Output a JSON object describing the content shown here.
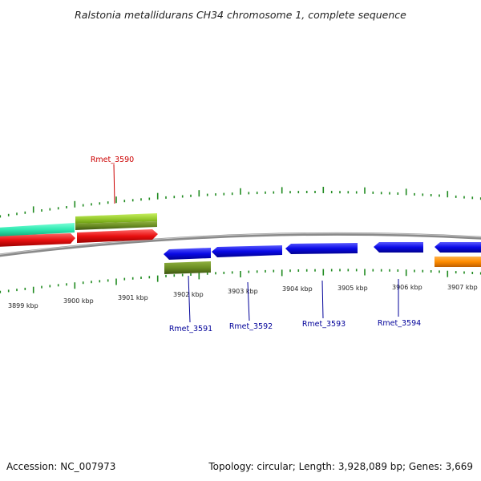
{
  "title": "Ralstonia metallidurans CH34 chromosome 1, complete sequence",
  "footer": {
    "accession": "Accession: NC_007973",
    "summary": "Topology: circular; Length: 3,928,089 bp; Genes: 3,669"
  },
  "kbp_labels": [
    "3899 kbp",
    "3900 kbp",
    "3901 kbp",
    "3902 kbp",
    "3903 kbp",
    "3904 kbp",
    "3905 kbp",
    "3906 kbp",
    "3907 kbp"
  ],
  "gene_labels": [
    {
      "text": "Rmet_3590",
      "color": "#cc0000"
    },
    {
      "text": "Rmet_3591",
      "color": "#000099"
    },
    {
      "text": "Rmet_3592",
      "color": "#000099"
    },
    {
      "text": "Rmet_3593",
      "color": "#000099"
    },
    {
      "text": "Rmet_3594",
      "color": "#000099"
    }
  ],
  "colors": {
    "backbone": "#8a8a8a",
    "tick": "#1f8a1f",
    "forward_gene": "#e81010",
    "reverse_gene": "#0a0ae6",
    "cds_olive": "#6b8e23",
    "cds_lime": "#9acd32",
    "cds_teal": "#2ee8b0",
    "cds_orange": "#ff8c00"
  }
}
